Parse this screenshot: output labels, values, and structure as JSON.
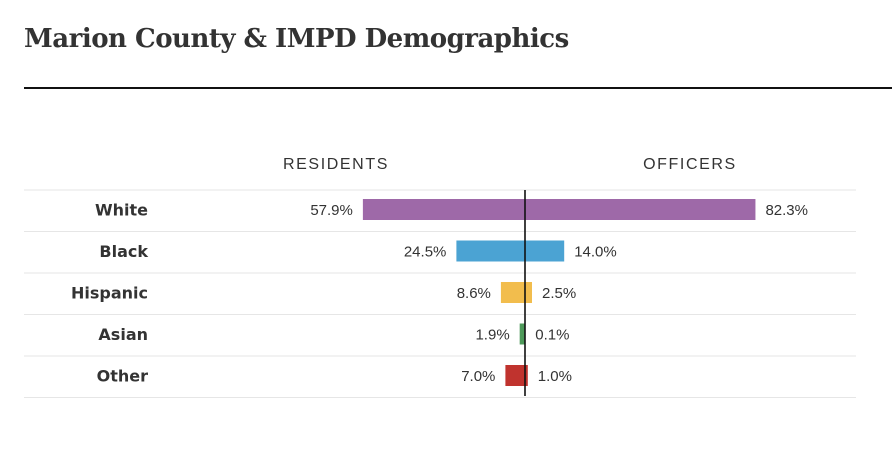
{
  "title": "Marion County & IMPD Demographics",
  "chart_data": {
    "type": "bar",
    "layout": "diverging",
    "left_header": "RESIDENTS",
    "right_header": "OFFICERS",
    "categories": [
      "White",
      "Black",
      "Hispanic",
      "Asian",
      "Other"
    ],
    "series": [
      {
        "name": "RESIDENTS",
        "values": [
          57.9,
          24.5,
          8.6,
          1.9,
          7.0
        ],
        "labels": [
          "57.9%",
          "24.5%",
          "8.6%",
          "1.9%",
          "7.0%"
        ]
      },
      {
        "name": "OFFICERS",
        "values": [
          82.3,
          14.0,
          2.5,
          0.1,
          1.0
        ],
        "labels": [
          "82.3%",
          "14.0%",
          "2.5%",
          "0.1%",
          "1.0%"
        ]
      }
    ],
    "colors": [
      "#9e69a8",
      "#4ba3d3",
      "#f2bd4d",
      "#4e9a5a",
      "#c0332e"
    ],
    "grid": true,
    "unit": "%"
  }
}
